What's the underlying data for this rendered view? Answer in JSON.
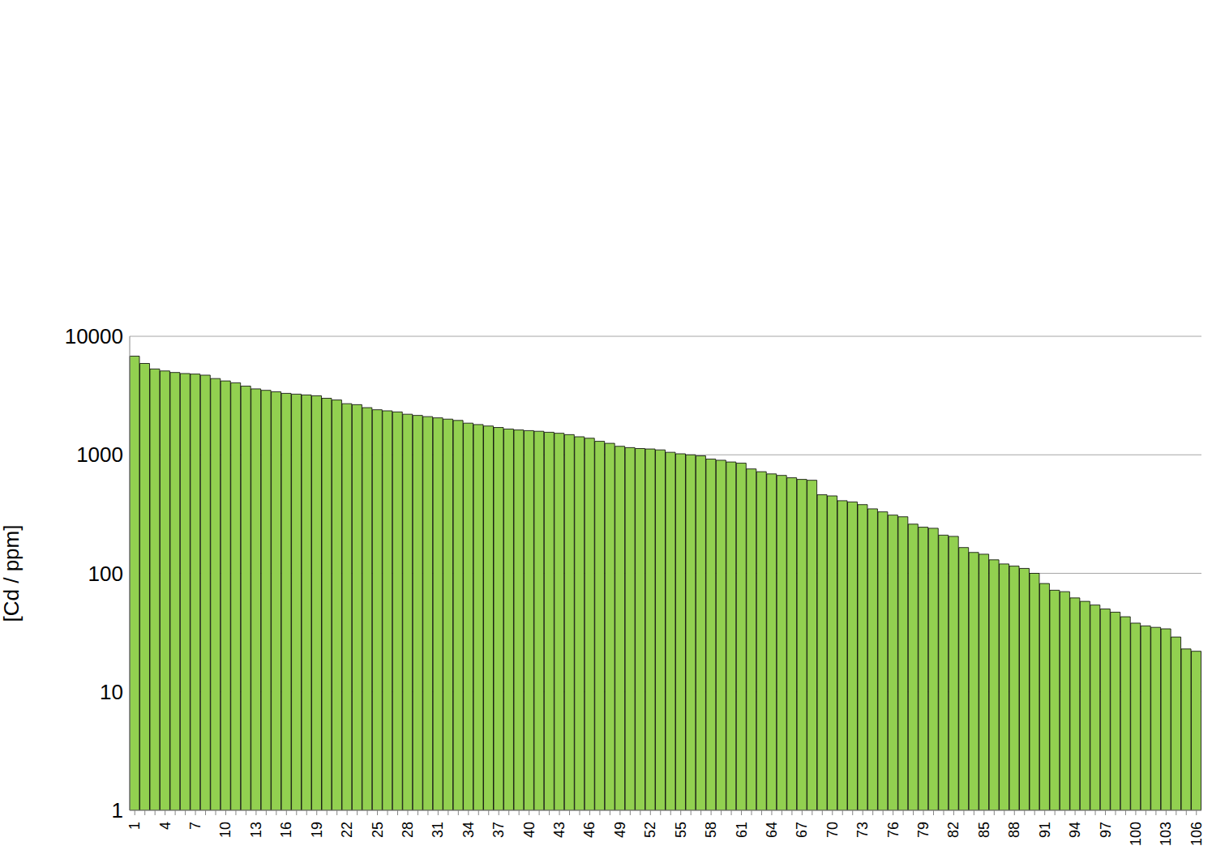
{
  "chart_data": {
    "type": "bar",
    "y_label": "[Cd / ppm]",
    "categories": [
      "1",
      null,
      null,
      "4",
      null,
      null,
      "7",
      null,
      null,
      "10",
      null,
      null,
      "13",
      null,
      null,
      "16",
      null,
      null,
      "19",
      null,
      null,
      "22",
      null,
      null,
      "25",
      null,
      null,
      "28",
      null,
      null,
      "31",
      null,
      null,
      "34",
      null,
      null,
      "37",
      null,
      null,
      "40",
      null,
      null,
      "43",
      null,
      null,
      "46",
      null,
      null,
      "49",
      null,
      null,
      "52",
      null,
      null,
      "55",
      null,
      null,
      "58",
      null,
      null,
      "61",
      null,
      null,
      "64",
      null,
      null,
      "67",
      null,
      null,
      "70",
      null,
      null,
      "73",
      null,
      null,
      "76",
      null,
      null,
      "79",
      null,
      null,
      "82",
      null,
      null,
      "85",
      null,
      null,
      "88",
      null,
      null,
      "91",
      null,
      null,
      "94",
      null,
      null,
      "97",
      null,
      null,
      "100",
      null,
      null,
      "103",
      null,
      null,
      "106"
    ],
    "values": [
      6800,
      5900,
      5300,
      5100,
      4950,
      4850,
      4800,
      4700,
      4400,
      4200,
      4050,
      3800,
      3600,
      3500,
      3400,
      3300,
      3250,
      3200,
      3150,
      3000,
      2900,
      2700,
      2650,
      2500,
      2400,
      2350,
      2300,
      2200,
      2150,
      2100,
      2050,
      2000,
      1950,
      1850,
      1800,
      1750,
      1700,
      1650,
      1620,
      1600,
      1580,
      1550,
      1520,
      1480,
      1420,
      1380,
      1300,
      1250,
      1180,
      1150,
      1130,
      1120,
      1100,
      1050,
      1020,
      1000,
      980,
      920,
      900,
      870,
      850,
      760,
      720,
      690,
      670,
      640,
      620,
      610,
      460,
      450,
      410,
      400,
      380,
      350,
      330,
      310,
      300,
      260,
      245,
      240,
      210,
      205,
      165,
      150,
      145,
      130,
      120,
      115,
      110,
      100,
      82,
      72,
      70,
      62,
      58,
      54,
      50,
      47,
      43,
      38,
      36,
      35,
      34,
      29,
      23,
      22
    ],
    "color": "#92d050",
    "ylim": [
      1,
      10000
    ],
    "yticks": [
      1,
      10,
      100,
      1000,
      10000
    ],
    "log": "y",
    "grid": true
  }
}
